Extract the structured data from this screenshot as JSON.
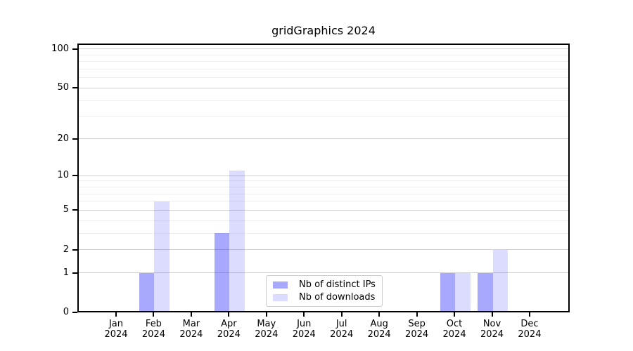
{
  "chart_data": {
    "type": "bar",
    "title": "gridGraphics 2024",
    "x_months": [
      "Jan",
      "Feb",
      "Mar",
      "Apr",
      "May",
      "Jun",
      "Jul",
      "Aug",
      "Sep",
      "Oct",
      "Nov",
      "Dec"
    ],
    "x_year": "2024",
    "series": [
      {
        "name": "Nb of distinct IPs",
        "color": "#0000f557",
        "values": [
          0,
          1,
          0,
          3,
          0,
          0,
          0,
          0,
          0,
          1,
          1,
          0
        ]
      },
      {
        "name": "Nb of downloads",
        "color": "#0000f523",
        "values": [
          0,
          6,
          0,
          11,
          0,
          0,
          0,
          0,
          0,
          1,
          2,
          0
        ]
      }
    ],
    "yscale": "log1p",
    "ylim": [
      0,
      110
    ],
    "yticks": [
      100,
      50,
      20,
      10,
      5,
      2,
      1,
      0
    ],
    "yticks_minor": [
      3,
      4,
      6,
      7,
      8,
      9,
      30,
      40,
      60,
      70,
      80,
      90
    ],
    "grid": "horizontal-only",
    "legend_position": "inside-bottom-center"
  },
  "colors": {
    "background": "#ffffff",
    "axis": "#000000",
    "grid_major": "#d0d0d0",
    "grid_minor": "#efefef",
    "legend_border": "#cccccc",
    "text": "#000000"
  }
}
